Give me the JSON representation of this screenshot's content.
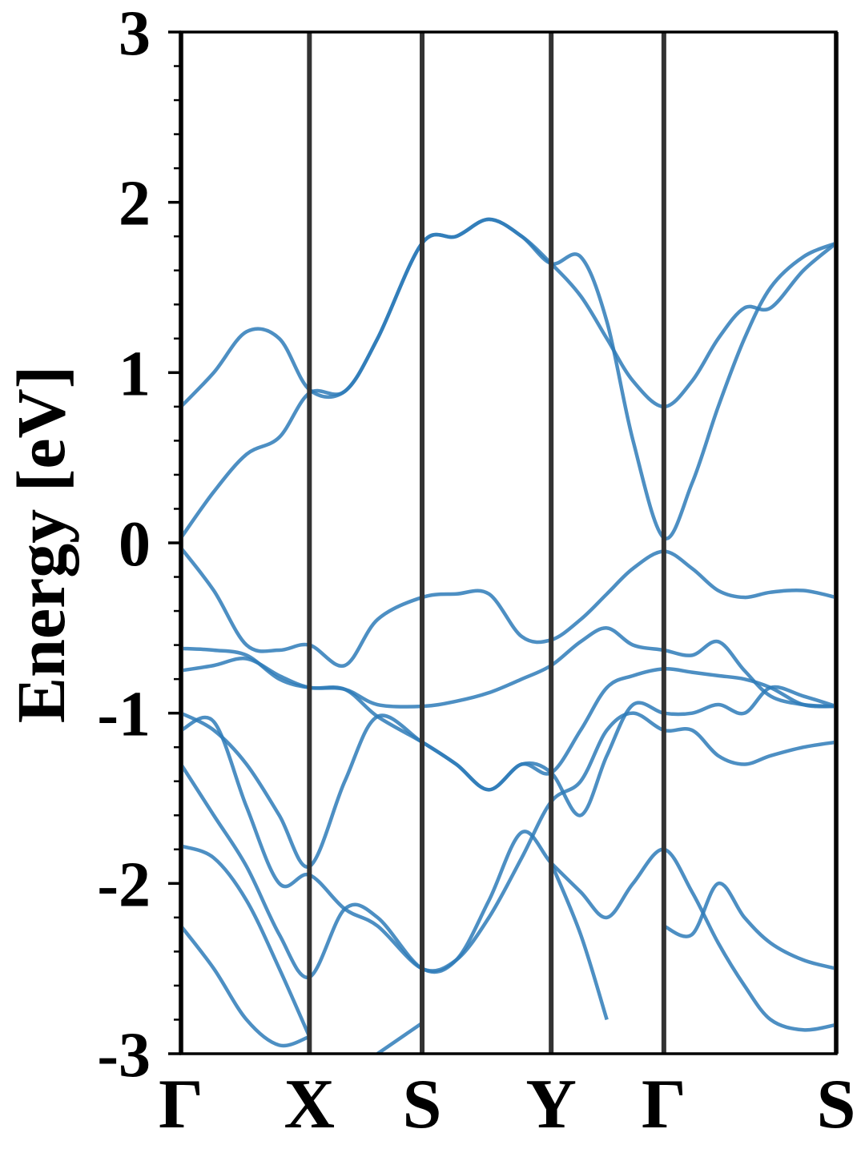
{
  "chart_data": {
    "type": "line",
    "ylabel": "Energy [eV]",
    "x": [
      0,
      0.05,
      0.1,
      0.15,
      0.196,
      0.25,
      0.3,
      0.368,
      0.42,
      0.47,
      0.52,
      0.565,
      0.61,
      0.65,
      0.69,
      0.737,
      0.78,
      0.82,
      0.86,
      0.9,
      0.95,
      1.0
    ],
    "xlim": [
      0,
      1
    ],
    "xticks": [
      {
        "value": 0,
        "label": "Γ"
      },
      {
        "value": 0.196,
        "label": "X"
      },
      {
        "value": 0.368,
        "label": "S"
      },
      {
        "value": 0.565,
        "label": "Y"
      },
      {
        "value": 0.737,
        "label": "Γ"
      },
      {
        "value": 1.0,
        "label": "S"
      }
    ],
    "ylim": [
      -3,
      3
    ],
    "yticks": [
      -3,
      -2,
      -1,
      0,
      1,
      2,
      3
    ],
    "yminor_ticks": [
      -2.8,
      -2.6,
      -2.4,
      -2.2,
      -1.8,
      -1.6,
      -1.4,
      -1.2,
      -0.8,
      -0.6,
      -0.4,
      -0.2,
      0.2,
      0.4,
      0.6,
      0.8,
      1.2,
      1.4,
      1.6,
      1.8,
      2.2,
      2.4,
      2.6,
      2.8
    ],
    "color": "#2e7bb8",
    "series": [
      {
        "values": [
          0.8,
          1.0,
          1.24,
          1.2,
          0.9,
          0.89,
          1.2,
          1.76,
          1.8,
          1.9,
          1.8,
          1.64,
          1.68,
          1.3,
          0.6,
          0.03,
          0.35,
          0.8,
          1.2,
          1.5,
          1.68,
          1.76
        ]
      },
      {
        "values": [
          0.03,
          0.3,
          0.52,
          0.62,
          0.88,
          0.89,
          1.2,
          1.76,
          1.8,
          1.9,
          1.8,
          1.64,
          1.45,
          1.2,
          0.95,
          0.8,
          0.95,
          1.2,
          1.38,
          1.38,
          1.6,
          1.76
        ]
      },
      {
        "values": [
          -0.03,
          -0.28,
          -0.6,
          -0.63,
          -0.6,
          -0.72,
          -0.45,
          -0.32,
          -0.3,
          -0.3,
          -0.55,
          -0.57,
          -0.45,
          -0.3,
          -0.15,
          -0.05,
          -0.15,
          -0.28,
          -0.32,
          -0.29,
          -0.28,
          -0.32
        ]
      },
      {
        "values": [
          -0.62,
          -0.63,
          -0.66,
          -0.8,
          -0.85,
          -0.86,
          -0.95,
          -0.96,
          -0.93,
          -0.88,
          -0.8,
          -0.72,
          -0.58,
          -0.5,
          -0.6,
          -0.63,
          -0.66,
          -0.58,
          -0.75,
          -0.9,
          -0.95,
          -0.96
        ]
      },
      {
        "values": [
          -0.75,
          -0.72,
          -0.68,
          -0.78,
          -0.85,
          -0.86,
          -1.02,
          -1.17,
          -1.3,
          -1.45,
          -1.3,
          -1.35,
          -1.1,
          -0.85,
          -0.78,
          -0.74,
          -0.76,
          -0.78,
          -0.8,
          -0.85,
          -0.95,
          -0.96
        ]
      },
      {
        "values": [
          -1.0,
          -1.1,
          -1.3,
          -1.6,
          -1.9,
          -1.4,
          -1.02,
          -1.17,
          -1.3,
          -1.45,
          -1.3,
          -1.35,
          -1.6,
          -1.25,
          -0.95,
          -1.0,
          -1.0,
          -0.95,
          -1.0,
          -0.85,
          -0.9,
          -0.96
        ]
      },
      {
        "values": [
          -1.1,
          -1.05,
          -1.55,
          -2.0,
          -1.95,
          -2.15,
          -2.25,
          -2.5,
          -2.45,
          -2.2,
          -1.85,
          -1.52,
          -1.4,
          -1.1,
          -1.0,
          -1.1,
          -1.1,
          -1.25,
          -1.3,
          -1.25,
          -1.2,
          -1.17
        ]
      },
      {
        "values": [
          -1.3,
          -1.6,
          -1.9,
          -2.3,
          -2.55,
          -2.15,
          -2.2,
          -2.5,
          -2.45,
          -2.1,
          -1.7,
          -1.88,
          -2.05,
          -2.2,
          -2.0,
          -1.8,
          -2.05,
          -2.35,
          -2.6,
          -2.8,
          -2.86,
          -2.83
        ]
      },
      {
        "values": [
          -1.78,
          -1.85,
          -2.1,
          -2.5,
          -2.9,
          null,
          null,
          null,
          null,
          null,
          null,
          null,
          null,
          null,
          null,
          -2.25,
          -2.3,
          -2.0,
          -2.2,
          -2.35,
          -2.45,
          -2.5
        ]
      },
      {
        "values": [
          -2.25,
          -2.5,
          -2.8,
          -2.95,
          -2.9,
          null,
          null,
          null,
          null,
          null,
          null,
          null,
          null,
          null,
          null,
          null,
          null,
          null,
          null,
          null,
          null,
          null
        ]
      },
      {
        "values": [
          null,
          null,
          null,
          null,
          null,
          null,
          -3.0,
          -2.82,
          null,
          null,
          null,
          -1.88,
          -2.3,
          -2.8,
          null,
          null,
          null,
          null,
          null,
          null,
          null,
          null
        ]
      }
    ]
  }
}
